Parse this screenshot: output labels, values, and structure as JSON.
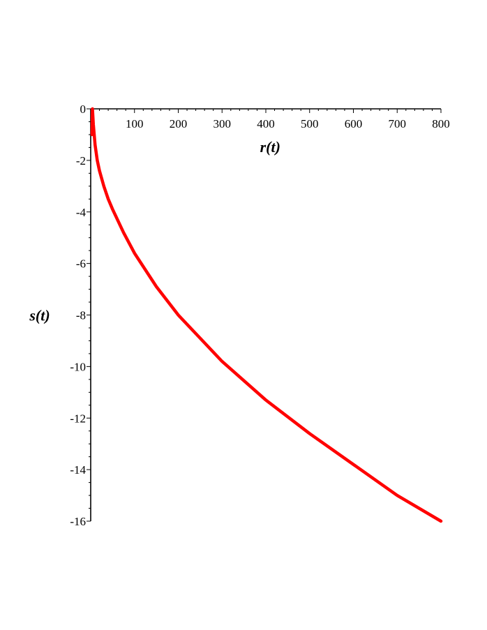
{
  "chart_data": {
    "type": "line",
    "xlabel": "r(t)",
    "ylabel": "s(t)",
    "xlim": [
      0,
      800
    ],
    "ylim": [
      -16,
      0
    ],
    "x_ticks": [
      100,
      200,
      300,
      400,
      500,
      600,
      700,
      800
    ],
    "y_ticks": [
      0,
      -2,
      -4,
      -6,
      -8,
      -10,
      -12,
      -14,
      -16
    ],
    "y_tick_labels": [
      "0",
      "-2",
      "-4",
      "-6",
      "-8",
      "-10",
      "-12",
      "-14",
      "-16"
    ],
    "grid": false,
    "series": [
      {
        "color": "#ff0000",
        "points": [
          [
            3,
            -1
          ],
          [
            4,
            0
          ],
          [
            5,
            -0.3
          ],
          [
            6,
            -0.6
          ],
          [
            8,
            -1.0
          ],
          [
            10,
            -1.4
          ],
          [
            15,
            -2.0
          ],
          [
            20,
            -2.4
          ],
          [
            30,
            -3.0
          ],
          [
            40,
            -3.5
          ],
          [
            50,
            -3.9
          ],
          [
            75,
            -4.8
          ],
          [
            100,
            -5.6
          ],
          [
            150,
            -6.9
          ],
          [
            200,
            -8.0
          ],
          [
            250,
            -8.9
          ],
          [
            300,
            -9.8
          ],
          [
            400,
            -11.3
          ],
          [
            500,
            -12.6
          ],
          [
            600,
            -13.8
          ],
          [
            700,
            -15.0
          ],
          [
            800,
            -16.0
          ]
        ]
      }
    ]
  }
}
